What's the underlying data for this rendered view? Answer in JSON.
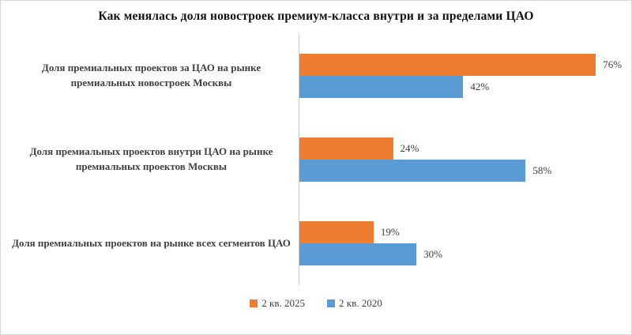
{
  "title": "Как менялась доля новостроек премиум-класса внутри и за пределами ЦАО",
  "chart_data": {
    "type": "bar",
    "orientation": "horizontal",
    "title": "Как менялась доля новостроек премиум-класса внутри и за пределами ЦАО",
    "categories": [
      "Доля премиальных проектов за ЦАО на рынке премиальных новостроек Москвы",
      "Доля премиальных проектов внутри ЦАО на рынке премиальных проектов Москвы",
      "Доля премиальных проектов на рынке всех сегментов ЦАО"
    ],
    "series": [
      {
        "name": "2 кв. 2025",
        "color": "#ED7D31",
        "values": [
          76,
          24,
          19
        ],
        "labels": [
          "76%",
          "24%",
          "19%"
        ]
      },
      {
        "name": "2 кв. 2020",
        "color": "#5B9BD5",
        "values": [
          42,
          58,
          30
        ],
        "labels": [
          "42%",
          "58%",
          "30%"
        ]
      }
    ],
    "xlim": [
      0,
      80
    ],
    "grid": false,
    "legend_position": "bottom",
    "axis_line_color": "#c9c9c9"
  },
  "legend": {
    "items": [
      {
        "label": "2 кв. 2025",
        "color": "#ED7D31"
      },
      {
        "label": "2 кв. 2020",
        "color": "#5B9BD5"
      }
    ]
  }
}
